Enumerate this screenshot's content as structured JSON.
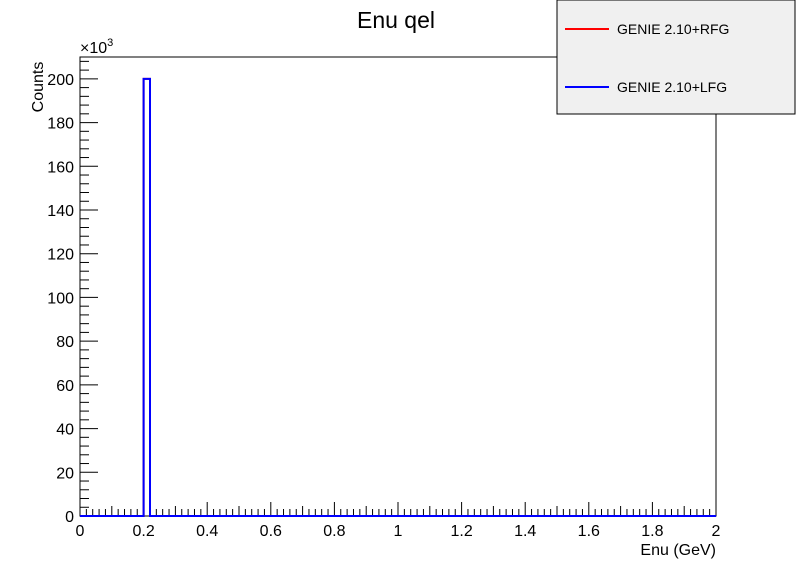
{
  "chart_data": {
    "type": "histogram",
    "title": "Enu qel",
    "xlabel": "Enu (GeV)",
    "ylabel": "Counts",
    "y_multiplier_label": "×10",
    "y_multiplier_exponent": "3",
    "xlim": [
      0,
      2
    ],
    "ylim": [
      0,
      210
    ],
    "x_ticks": [
      "0",
      "0.2",
      "0.4",
      "0.6",
      "0.8",
      "1",
      "1.2",
      "1.4",
      "1.6",
      "1.8",
      "2"
    ],
    "y_ticks": [
      "0",
      "20",
      "40",
      "60",
      "80",
      "100",
      "120",
      "140",
      "160",
      "180",
      "200"
    ],
    "x_tick_values": [
      0,
      0.2,
      0.4,
      0.6,
      0.8,
      1.0,
      1.2,
      1.4,
      1.6,
      1.8,
      2.0
    ],
    "y_tick_values": [
      0,
      20,
      40,
      60,
      80,
      100,
      120,
      140,
      160,
      180,
      200
    ],
    "series": [
      {
        "name": "GENIE 2.10+RFG",
        "color": "#ff0000",
        "bins": [
          {
            "x_low": 0.2,
            "x_high": 0.22,
            "value": 200
          }
        ]
      },
      {
        "name": "GENIE 2.10+LFG",
        "color": "#0000ff",
        "bins": [
          {
            "x_low": 0.2,
            "x_high": 0.22,
            "value": 200
          }
        ]
      }
    ],
    "legend_position": "top-right"
  }
}
